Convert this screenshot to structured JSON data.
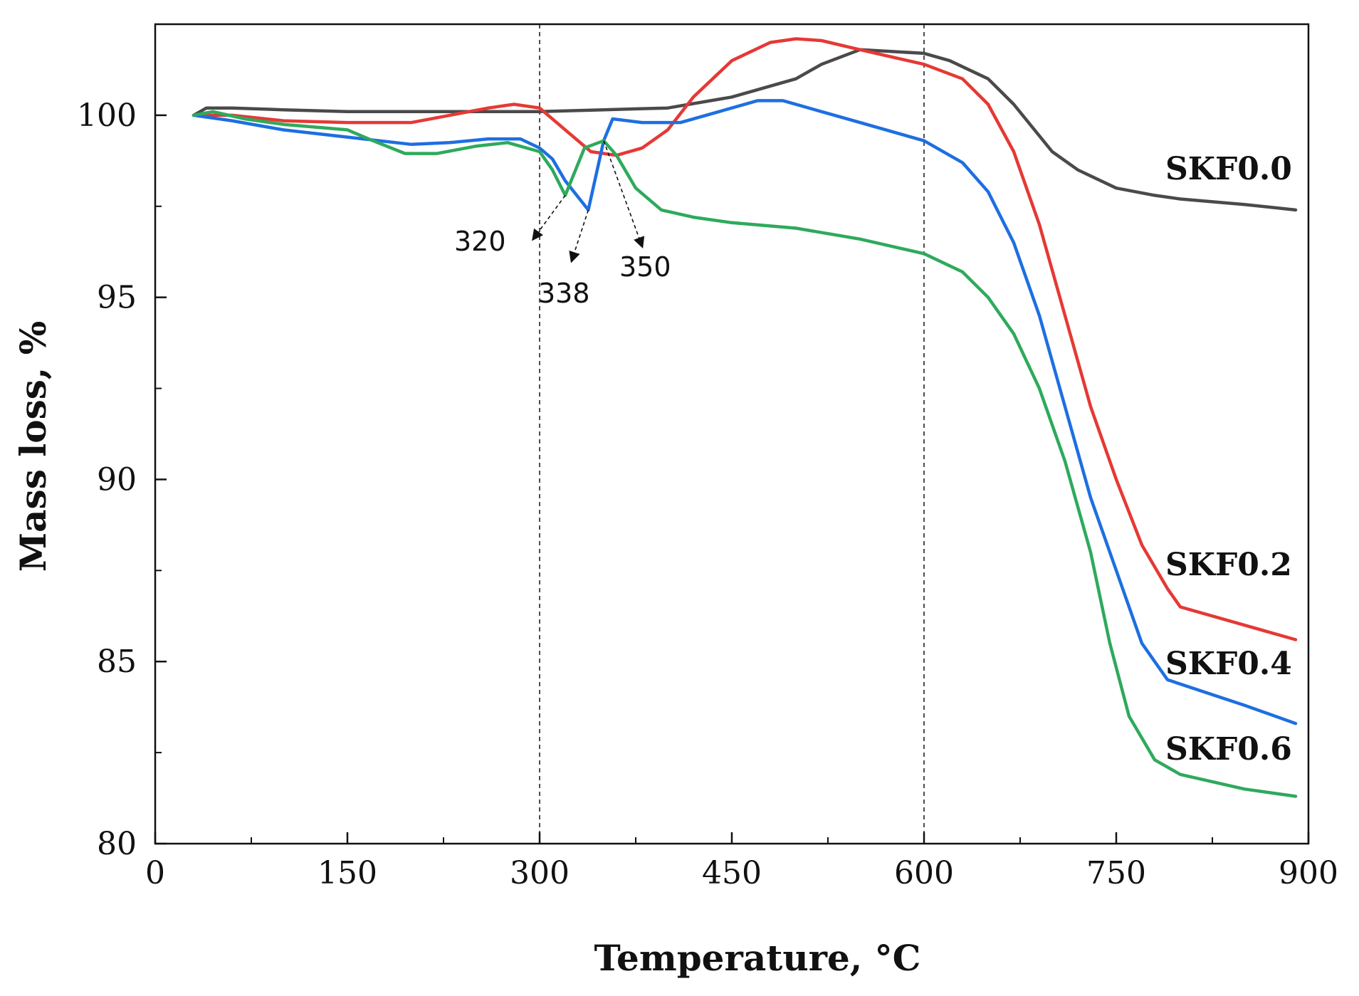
{
  "chart_data": {
    "type": "line",
    "title": "",
    "xlabel": "Temperature, °C",
    "ylabel": "Mass loss, %",
    "xlim": [
      0,
      900
    ],
    "ylim": [
      80,
      102.5
    ],
    "x_ticks": [
      0,
      150,
      300,
      450,
      600,
      750,
      900
    ],
    "x_tick_labels": [
      "0",
      "150",
      "300",
      "450",
      "600",
      "750",
      "900"
    ],
    "y_ticks": [
      80,
      85,
      90,
      95,
      100
    ],
    "y_tick_labels": [
      "80",
      "85",
      "90",
      "95",
      "100"
    ],
    "grid": false,
    "vertical_reference_lines": [
      300,
      600
    ],
    "series": [
      {
        "name": "SKF0.0",
        "color": "#4a4a4a",
        "points": [
          [
            30,
            100.0
          ],
          [
            40,
            100.2
          ],
          [
            60,
            100.2
          ],
          [
            100,
            100.15
          ],
          [
            150,
            100.1
          ],
          [
            200,
            100.1
          ],
          [
            250,
            100.1
          ],
          [
            300,
            100.1
          ],
          [
            350,
            100.15
          ],
          [
            400,
            100.2
          ],
          [
            450,
            100.5
          ],
          [
            500,
            101.0
          ],
          [
            520,
            101.4
          ],
          [
            550,
            101.8
          ],
          [
            600,
            101.7
          ],
          [
            620,
            101.5
          ],
          [
            650,
            101.0
          ],
          [
            670,
            100.3
          ],
          [
            700,
            99.0
          ],
          [
            720,
            98.5
          ],
          [
            750,
            98.0
          ],
          [
            780,
            97.8
          ],
          [
            800,
            97.7
          ],
          [
            850,
            97.55
          ],
          [
            890,
            97.4
          ]
        ]
      },
      {
        "name": "SKF0.2",
        "color": "#e53935",
        "points": [
          [
            30,
            100.0
          ],
          [
            60,
            100.0
          ],
          [
            100,
            99.85
          ],
          [
            150,
            99.8
          ],
          [
            200,
            99.8
          ],
          [
            230,
            100.0
          ],
          [
            260,
            100.2
          ],
          [
            280,
            100.3
          ],
          [
            300,
            100.2
          ],
          [
            320,
            99.6
          ],
          [
            340,
            99.0
          ],
          [
            360,
            98.9
          ],
          [
            380,
            99.1
          ],
          [
            400,
            99.6
          ],
          [
            420,
            100.5
          ],
          [
            450,
            101.5
          ],
          [
            480,
            102.0
          ],
          [
            500,
            102.1
          ],
          [
            520,
            102.05
          ],
          [
            550,
            101.8
          ],
          [
            600,
            101.4
          ],
          [
            630,
            101.0
          ],
          [
            650,
            100.3
          ],
          [
            670,
            99.0
          ],
          [
            690,
            97.0
          ],
          [
            710,
            94.5
          ],
          [
            730,
            92.0
          ],
          [
            750,
            90.0
          ],
          [
            770,
            88.2
          ],
          [
            790,
            87.0
          ],
          [
            800,
            86.5
          ],
          [
            850,
            86.0
          ],
          [
            890,
            85.6
          ]
        ]
      },
      {
        "name": "SKF0.4",
        "color": "#1e6fe0",
        "points": [
          [
            30,
            100.0
          ],
          [
            60,
            99.85
          ],
          [
            100,
            99.6
          ],
          [
            150,
            99.4
          ],
          [
            200,
            99.2
          ],
          [
            230,
            99.25
          ],
          [
            260,
            99.35
          ],
          [
            285,
            99.35
          ],
          [
            300,
            99.1
          ],
          [
            310,
            98.8
          ],
          [
            320,
            98.2
          ],
          [
            338,
            97.4
          ],
          [
            350,
            99.3
          ],
          [
            357,
            99.9
          ],
          [
            380,
            99.8
          ],
          [
            410,
            99.8
          ],
          [
            440,
            100.1
          ],
          [
            470,
            100.4
          ],
          [
            490,
            100.4
          ],
          [
            520,
            100.1
          ],
          [
            550,
            99.8
          ],
          [
            600,
            99.3
          ],
          [
            630,
            98.7
          ],
          [
            650,
            97.9
          ],
          [
            670,
            96.5
          ],
          [
            690,
            94.5
          ],
          [
            710,
            92.0
          ],
          [
            730,
            89.5
          ],
          [
            750,
            87.5
          ],
          [
            770,
            85.5
          ],
          [
            790,
            84.5
          ],
          [
            850,
            83.8
          ],
          [
            890,
            83.3
          ]
        ]
      },
      {
        "name": "SKF0.6",
        "color": "#2eaa5c",
        "points": [
          [
            30,
            100.0
          ],
          [
            45,
            100.1
          ],
          [
            70,
            99.9
          ],
          [
            100,
            99.75
          ],
          [
            150,
            99.6
          ],
          [
            170,
            99.3
          ],
          [
            195,
            98.95
          ],
          [
            220,
            98.95
          ],
          [
            250,
            99.15
          ],
          [
            275,
            99.25
          ],
          [
            300,
            99.0
          ],
          [
            310,
            98.5
          ],
          [
            320,
            97.8
          ],
          [
            335,
            99.1
          ],
          [
            350,
            99.3
          ],
          [
            360,
            98.9
          ],
          [
            375,
            98.0
          ],
          [
            395,
            97.4
          ],
          [
            420,
            97.2
          ],
          [
            450,
            97.05
          ],
          [
            500,
            96.9
          ],
          [
            550,
            96.6
          ],
          [
            600,
            96.2
          ],
          [
            630,
            95.7
          ],
          [
            650,
            95.0
          ],
          [
            670,
            94.0
          ],
          [
            690,
            92.5
          ],
          [
            710,
            90.5
          ],
          [
            730,
            88.0
          ],
          [
            745,
            85.5
          ],
          [
            760,
            83.5
          ],
          [
            780,
            82.3
          ],
          [
            800,
            81.9
          ],
          [
            850,
            81.5
          ],
          [
            890,
            81.3
          ]
        ]
      }
    ],
    "series_labels": [
      "SKF0.0",
      "SKF0.2",
      "SKF0.4",
      "SKF0.6"
    ],
    "annotations": [
      {
        "text": "320",
        "point": [
          320,
          97.8
        ],
        "target": [
          295,
          96.6
        ]
      },
      {
        "text": "338",
        "point": [
          338,
          97.4
        ],
        "target": [
          325,
          96.0
        ]
      },
      {
        "text": "350",
        "point": [
          350,
          99.3
        ],
        "target": [
          380,
          96.4
        ]
      }
    ]
  }
}
